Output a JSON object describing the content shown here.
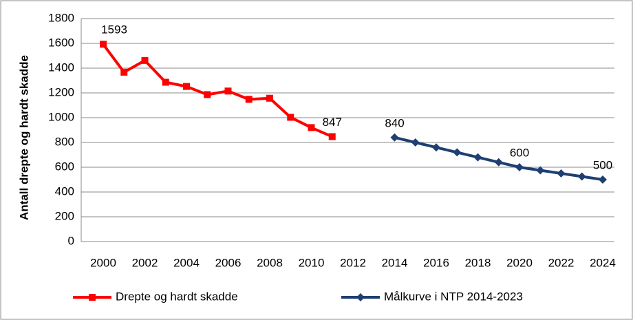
{
  "chart_data": {
    "type": "line",
    "ylabel": "Antall drepte og hardt skadde",
    "categories": [
      "2000",
      null,
      "2002",
      null,
      "2004",
      null,
      "2006",
      null,
      "2008",
      null,
      "2010",
      null,
      "2012",
      null,
      "2014",
      null,
      "2016",
      null,
      "2018",
      null,
      "2020",
      null,
      "2022",
      null,
      "2024"
    ],
    "series": [
      {
        "name": "Drepte og hardt skadde",
        "color": "#ff0000",
        "marker": "square",
        "values": [
          1593,
          1367,
          1462,
          1286,
          1252,
          1186,
          1215,
          1148,
          1157,
          1003,
          920,
          847,
          null,
          null,
          null,
          null,
          null,
          null,
          null,
          null,
          null,
          null,
          null,
          null,
          null
        ],
        "value_labels": [
          "1593",
          null,
          null,
          null,
          null,
          null,
          null,
          null,
          null,
          null,
          null,
          "847",
          null,
          null,
          null,
          null,
          null,
          null,
          null,
          null,
          null,
          null,
          null,
          null,
          null
        ]
      },
      {
        "name": "Målkurve i  NTP 2014-2023",
        "color": "#1f3f73",
        "marker": "diamond",
        "values": [
          null,
          null,
          null,
          null,
          null,
          null,
          null,
          null,
          null,
          null,
          null,
          null,
          null,
          null,
          840,
          800,
          760,
          720,
          680,
          640,
          600,
          575,
          550,
          525,
          500
        ],
        "value_labels": [
          null,
          null,
          null,
          null,
          null,
          null,
          null,
          null,
          null,
          null,
          null,
          null,
          null,
          null,
          "840",
          null,
          null,
          null,
          null,
          null,
          "600",
          null,
          null,
          null,
          "500"
        ]
      }
    ],
    "ylim": [
      0,
      1800
    ],
    "yticks": [
      0,
      200,
      400,
      600,
      800,
      1000,
      1200,
      1400,
      1600,
      1800
    ],
    "grid": true,
    "legend": "bottom"
  }
}
